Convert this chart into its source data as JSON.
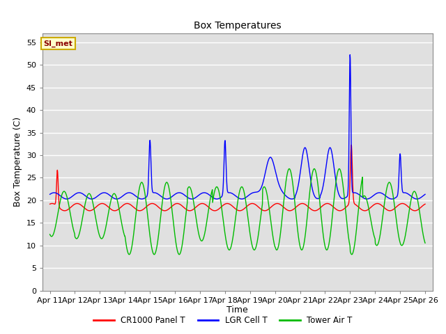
{
  "title": "Box Temperatures",
  "xlabel": "Time",
  "ylabel": "Box Temperature (C)",
  "ylim": [
    0,
    57
  ],
  "yticks": [
    0,
    5,
    10,
    15,
    20,
    25,
    30,
    35,
    40,
    45,
    50,
    55
  ],
  "x_labels": [
    "Apr 11",
    "Apr 12",
    "Apr 13",
    "Apr 14",
    "Apr 15",
    "Apr 16",
    "Apr 17",
    "Apr 18",
    "Apr 19",
    "Apr 20",
    "Apr 21",
    "Apr 22",
    "Apr 23",
    "Apr 24",
    "Apr 25",
    "Apr 26"
  ],
  "legend_labels": [
    "CR1000 Panel T",
    "LGR Cell T",
    "Tower Air T"
  ],
  "legend_colors": [
    "#ff0000",
    "#0000ff",
    "#00bb00"
  ],
  "watermark_text": "SI_met",
  "plot_bg_color": "#e0e0e0",
  "grid_color": "#ffffff",
  "cr1000_color": "#ff0000",
  "lgr_color": "#0000ff",
  "tower_color": "#00bb00"
}
